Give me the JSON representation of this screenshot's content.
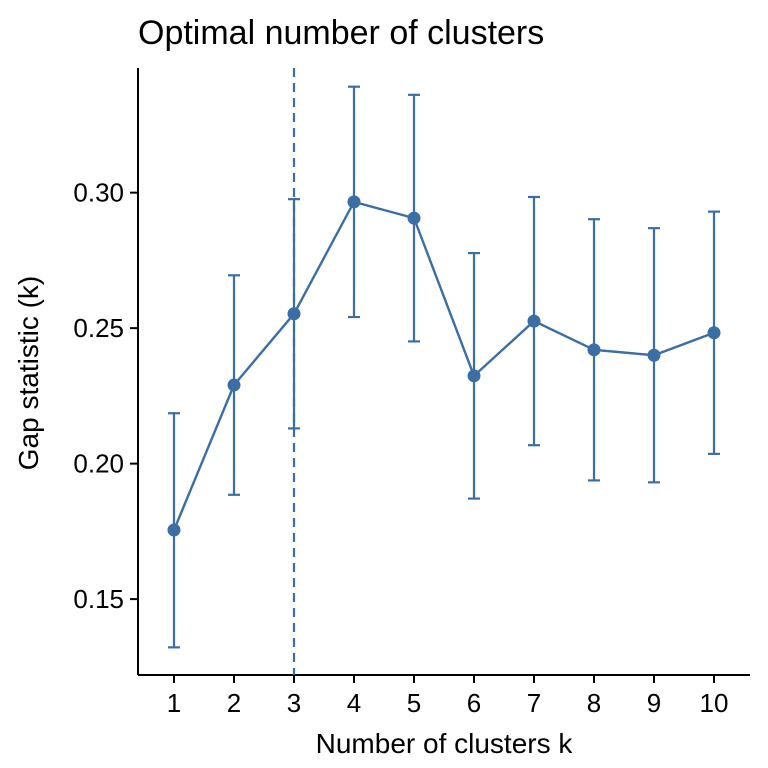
{
  "chart_data": {
    "type": "line",
    "title": "Optimal number of clusters",
    "xlabel": "Number of clusters k",
    "ylabel": "Gap statistic (k)",
    "x": [
      1,
      2,
      3,
      4,
      5,
      6,
      7,
      8,
      9,
      10
    ],
    "x_tick_labels": [
      "1",
      "2",
      "3",
      "4",
      "5",
      "6",
      "7",
      "8",
      "9",
      "10"
    ],
    "y_ticks": [
      0.15,
      0.2,
      0.25,
      0.3
    ],
    "y_tick_labels": [
      "0.15",
      "0.20",
      "0.25",
      "0.30"
    ],
    "xlim": [
      0.4,
      10.6
    ],
    "ylim": [
      0.122,
      0.346
    ],
    "grid": false,
    "color": "#3A6EA5",
    "series": [
      {
        "values": [
          0.1755,
          0.229,
          0.2553,
          0.2966,
          0.2906,
          0.2324,
          0.2526,
          0.242,
          0.24,
          0.2483
        ],
        "error_low": [
          0.1322,
          0.1885,
          0.213,
          0.2541,
          0.2451,
          0.1871,
          0.2068,
          0.1938,
          0.1931,
          0.2036
        ],
        "error_high": [
          0.2186,
          0.2695,
          0.2976,
          0.3391,
          0.3361,
          0.2777,
          0.2984,
          0.2902,
          0.2869,
          0.293
        ]
      }
    ],
    "vline": {
      "x": 3,
      "style": "dashed"
    }
  }
}
